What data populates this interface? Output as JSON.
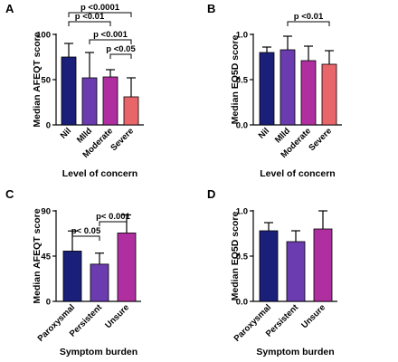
{
  "chart_data": [
    {
      "panel": "A",
      "type": "bar",
      "ylabel": "Median AFEQT score",
      "xlabel": "Level of concern",
      "ylim": [
        0,
        100
      ],
      "yticks": [
        "0",
        "50",
        "100"
      ],
      "categories": [
        "Nil",
        "MIld",
        "Moderate",
        "Severe"
      ],
      "values": [
        75,
        52,
        53,
        31
      ],
      "error_upper": [
        90,
        80,
        61,
        52
      ],
      "colors": [
        "#1a1f7a",
        "#6a3cb0",
        "#b02fa0",
        "#e8666a"
      ],
      "comparisons": [
        {
          "from": 0,
          "to": 3,
          "label": "p <0.0001"
        },
        {
          "from": 0,
          "to": 2,
          "label": "p <0.01"
        },
        {
          "from": 1,
          "to": 3,
          "label": "p <0.001"
        },
        {
          "from": 2,
          "to": 3,
          "label": "p <0.05"
        }
      ]
    },
    {
      "panel": "B",
      "type": "bar",
      "ylabel": "Median EQ5D score",
      "xlabel": "Level of concern",
      "ylim": [
        0,
        1.0
      ],
      "yticks": [
        "0.0",
        "0.5",
        "1.0"
      ],
      "categories": [
        "Nil",
        "MIld",
        "Moderate",
        "Severe"
      ],
      "values": [
        0.8,
        0.83,
        0.71,
        0.67
      ],
      "error_upper": [
        0.86,
        0.98,
        0.87,
        0.82
      ],
      "colors": [
        "#1a1f7a",
        "#6a3cb0",
        "#b02fa0",
        "#e8666a"
      ],
      "comparisons": [
        {
          "from": 1,
          "to": 3,
          "label": "p <0.01"
        }
      ]
    },
    {
      "panel": "C",
      "type": "bar",
      "ylabel": "Median AFEQT score",
      "xlabel": "Symptom burden",
      "ylim": [
        0,
        90
      ],
      "yticks": [
        "0",
        "45",
        "90"
      ],
      "categories": [
        "Paroxysmal",
        "Persistent",
        "Unsure"
      ],
      "values": [
        50,
        37,
        68
      ],
      "error_upper": [
        70,
        48,
        86
      ],
      "colors": [
        "#1a1f7a",
        "#6a3cb0",
        "#b02fa0"
      ],
      "comparisons": [
        {
          "from": 1,
          "to": 2,
          "label": "p< 0.001"
        },
        {
          "from": 0,
          "to": 1,
          "label": "p< 0.05"
        }
      ]
    },
    {
      "panel": "D",
      "type": "bar",
      "ylabel": "Median EQ5D score",
      "xlabel": "Symptom burden",
      "ylim": [
        0,
        1.0
      ],
      "yticks": [
        "0.0",
        "0.5",
        "1.0"
      ],
      "categories": [
        "Paroxysmal",
        "Persistent",
        "Unsure"
      ],
      "values": [
        0.78,
        0.66,
        0.8
      ],
      "error_upper": [
        0.87,
        0.78,
        1.0
      ],
      "colors": [
        "#1a1f7a",
        "#6a3cb0",
        "#b02fa0"
      ],
      "comparisons": []
    }
  ]
}
